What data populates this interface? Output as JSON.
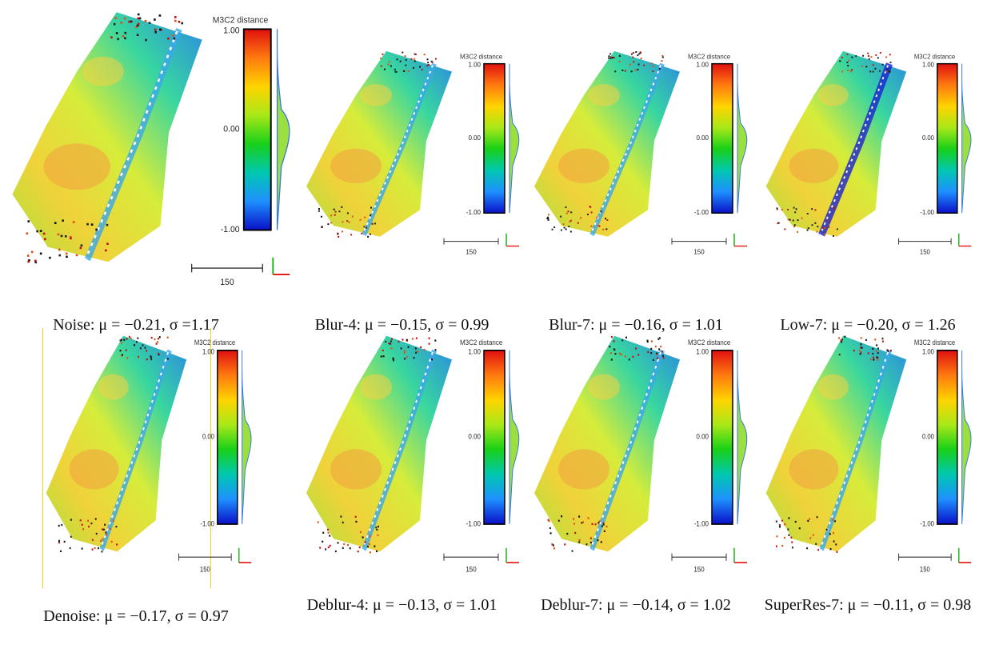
{
  "colorbar": {
    "title": "M3C2 distance",
    "max_label": "1.00",
    "mid_label": "0.00",
    "min_label": "-1.00"
  },
  "scalebar_label": "150",
  "colors": {
    "ramp": [
      "#0a10c8",
      "#1e90ff",
      "#00c8b0",
      "#18d018",
      "#a8e818",
      "#ffd400",
      "#ff7a10",
      "#e01010"
    ],
    "axis_red": "#e02020",
    "axis_green": "#20b020",
    "highlight": "#f0d020"
  },
  "panels": [
    {
      "caption": "Noise: μ = −0.21, σ =1.17"
    },
    {
      "caption": "Blur-4: μ = −0.15, σ = 0.99"
    },
    {
      "caption": "Blur-7: μ = −0.16, σ = 1.01"
    },
    {
      "caption": "Low-7: μ = −0.20, σ = 1.26"
    },
    {
      "caption": "Denoise: μ = −0.17, σ = 0.97"
    },
    {
      "caption": "Deblur-4: μ = −0.13, σ = 1.01"
    },
    {
      "caption": "Deblur-7: μ = −0.14, σ = 1.02"
    },
    {
      "caption": "SuperRes-7: μ = −0.11, σ = 0.98"
    }
  ]
}
